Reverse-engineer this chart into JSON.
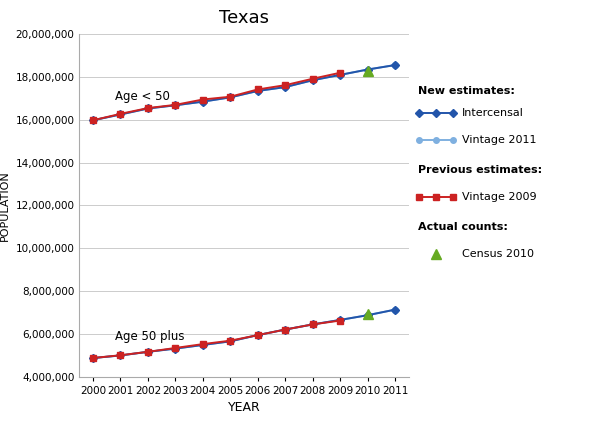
{
  "title": "Texas",
  "xlabel": "YEAR",
  "ylabel": "POPULATION",
  "intercensal_under50_years": [
    2000,
    2001,
    2002,
    2003,
    2004,
    2005,
    2006,
    2007,
    2008,
    2009,
    2010,
    2011
  ],
  "intercensal_under50": [
    15980000,
    16250000,
    16530000,
    16680000,
    16850000,
    17050000,
    17350000,
    17530000,
    17850000,
    18100000,
    18350000,
    18560000
  ],
  "vintage2011_under50_years": [
    2000,
    2001,
    2002,
    2003,
    2004,
    2005,
    2006,
    2007,
    2008,
    2009,
    2010,
    2011
  ],
  "vintage2011_under50": [
    15980000,
    16250000,
    16530000,
    16680000,
    16850000,
    17050000,
    17350000,
    17530000,
    17850000,
    18100000,
    18350000,
    18560000
  ],
  "vintage2009_under50_years": [
    2000,
    2001,
    2002,
    2003,
    2004,
    2005,
    2006,
    2007,
    2008,
    2009
  ],
  "vintage2009_under50": [
    15980000,
    16280000,
    16550000,
    16700000,
    16950000,
    17080000,
    17420000,
    17620000,
    17920000,
    18200000
  ],
  "census2010_under50_years": [
    2010
  ],
  "census2010_under50": [
    18280000
  ],
  "intercensal_over50_years": [
    2000,
    2001,
    2002,
    2003,
    2004,
    2005,
    2006,
    2007,
    2008,
    2009,
    2010,
    2011
  ],
  "intercensal_over50": [
    4870000,
    4990000,
    5160000,
    5310000,
    5480000,
    5650000,
    5940000,
    6200000,
    6440000,
    6650000,
    6870000,
    7130000
  ],
  "vintage2011_over50_years": [
    2000,
    2001,
    2002,
    2003,
    2004,
    2005,
    2006,
    2007,
    2008,
    2009,
    2010,
    2011
  ],
  "vintage2011_over50": [
    4870000,
    4990000,
    5160000,
    5310000,
    5480000,
    5650000,
    5940000,
    6200000,
    6440000,
    6650000,
    6870000,
    7130000
  ],
  "vintage2009_over50_years": [
    2000,
    2001,
    2002,
    2003,
    2004,
    2005,
    2006,
    2007,
    2008,
    2009
  ],
  "vintage2009_over50": [
    4870000,
    5000000,
    5160000,
    5340000,
    5520000,
    5680000,
    5940000,
    6200000,
    6440000,
    6620000
  ],
  "census2010_over50_years": [
    2010
  ],
  "census2010_over50": [
    6950000
  ],
  "color_intercensal": "#2255aa",
  "color_vintage2011": "#7fb0e0",
  "color_vintage2009": "#cc2222",
  "color_census": "#66aa22",
  "ylim": [
    4000000,
    20000000
  ],
  "yticks": [
    4000000,
    6000000,
    8000000,
    10000000,
    12000000,
    14000000,
    16000000,
    18000000,
    20000000
  ],
  "xticks": [
    2000,
    2001,
    2002,
    2003,
    2004,
    2005,
    2006,
    2007,
    2008,
    2009,
    2010,
    2011
  ],
  "label_under50": "Age < 50",
  "label_over50": "Age 50 plus",
  "legend_new_estimates": "New estimates:",
  "legend_intercensal": "Intercensal",
  "legend_vintage2011": "Vintage 2011",
  "legend_previous_estimates": "Previous estimates:",
  "legend_vintage2009": "Vintage 2009",
  "legend_actual": "Actual counts:",
  "legend_census": "Census 2010",
  "fig_width": 6.1,
  "fig_height": 4.28,
  "dpi": 100
}
